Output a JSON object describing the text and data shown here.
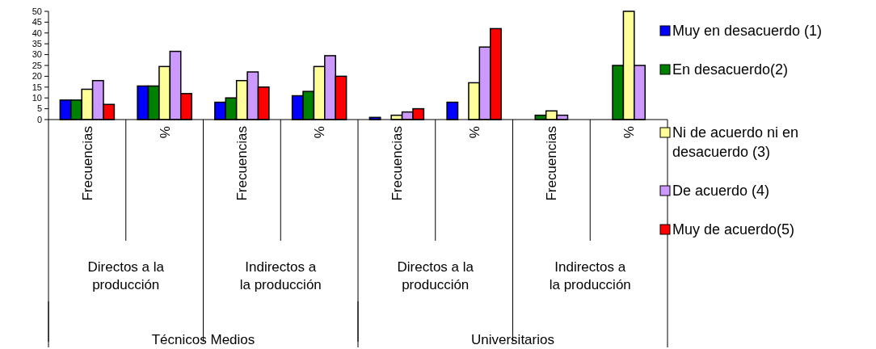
{
  "chart_data": {
    "type": "bar",
    "categories": [
      "Frecuencias",
      "%",
      "Frecuencias",
      "%",
      "Frecuencias",
      "%",
      "Frecuencias",
      "%"
    ],
    "series": [
      {
        "name": "Muy en desacuerdo (1)",
        "color": "#0000ff",
        "values": [
          9,
          15.5,
          8,
          11,
          1,
          8,
          0,
          0
        ]
      },
      {
        "name": "En desacuerdo(2)",
        "color": "#008000",
        "values": [
          9,
          15.5,
          10,
          13,
          0,
          0,
          2,
          25
        ]
      },
      {
        "name": "Ni de acuerdo ni en desacuerdo (3)",
        "color": "#ffff99",
        "values": [
          14,
          24.5,
          18,
          24.5,
          2,
          17,
          4,
          50
        ]
      },
      {
        "name": "De acuerdo (4)",
        "color": "#cc99ff",
        "values": [
          18,
          31.5,
          22,
          29.5,
          3.5,
          33.5,
          2,
          25
        ]
      },
      {
        "name": "Muy de acuerdo(5)",
        "color": "#ff0000",
        "values": [
          7,
          12,
          15,
          20,
          5,
          42,
          0,
          0
        ]
      }
    ],
    "ylim": [
      0,
      50
    ],
    "yticks": [
      0,
      5,
      10,
      15,
      20,
      25,
      30,
      35,
      40,
      45,
      50
    ],
    "grid": false,
    "legend": "right",
    "annotations": [
      "Directos a la producción",
      "Indirectos a la producción",
      "Directos a la producción",
      "Indirectos a la producción",
      "Técnicos Medios",
      "Universitarios"
    ]
  }
}
